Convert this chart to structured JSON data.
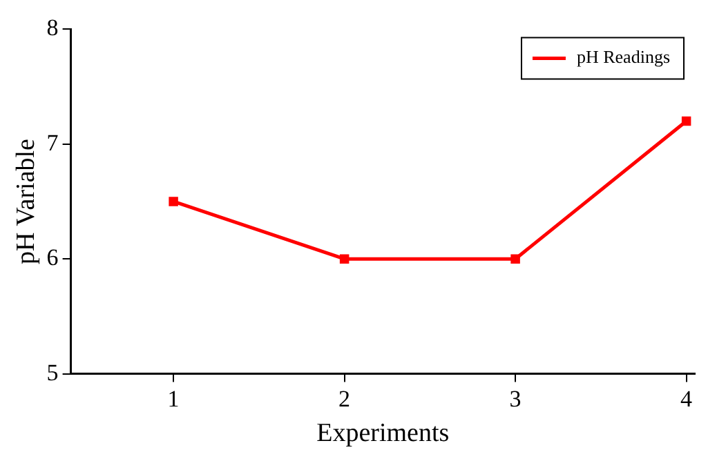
{
  "chart_data": {
    "type": "line",
    "xlabel": "Experiments",
    "ylabel": "pH Variable",
    "x": [
      1,
      2,
      3,
      4
    ],
    "series": [
      {
        "name": "pH Readings",
        "color": "#ff0000",
        "values": [
          6.5,
          6.0,
          6.0,
          7.2
        ]
      }
    ],
    "xlim": [
      0.4,
      4.05
    ],
    "xticks": [
      1,
      2,
      3,
      4
    ],
    "ylim": [
      5,
      8
    ],
    "yticks": [
      5,
      6,
      7,
      8
    ],
    "grid": false,
    "legend": "top right",
    "marker": "square",
    "line_style": "solid"
  }
}
